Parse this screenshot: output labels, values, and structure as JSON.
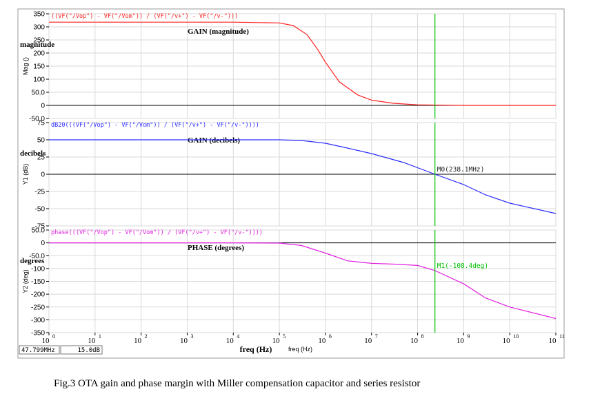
{
  "xaxis": {
    "label": "freq (Hz)",
    "label_small": "freq (Hz)",
    "ticks": [
      {
        "base": "10",
        "exp": "0"
      },
      {
        "base": "10",
        "exp": "1"
      },
      {
        "base": "10",
        "exp": "2"
      },
      {
        "base": "10",
        "exp": "3"
      },
      {
        "base": "10",
        "exp": "4"
      },
      {
        "base": "10",
        "exp": "5"
      },
      {
        "base": "10",
        "exp": "6"
      },
      {
        "base": "10",
        "exp": "7"
      },
      {
        "base": "10",
        "exp": "8"
      },
      {
        "base": "10",
        "exp": "9"
      },
      {
        "base": "10",
        "exp": "10"
      },
      {
        "base": "10",
        "exp": "11"
      }
    ]
  },
  "status": {
    "freq_readout": "47.799MHz",
    "value_readout": "15.0dB"
  },
  "caption": "Fig.3 OTA gain and phase margin with Miller compensation capacitor and series resistor",
  "colors": {
    "gain": "#ff2020",
    "db": "#2b2bff",
    "phase": "#e020e0",
    "cursor": "#00c000",
    "grid": "#d8d8d8"
  },
  "chart_data": [
    {
      "type": "line",
      "scale_x": "log",
      "expression": "((VF(\"/Vop\") - VF(\"/Vom\")) / (VF(\"/v+\") - VF(\"/v-\")))",
      "title": "GAIN (magnitude)",
      "side_label": "magnitude",
      "ylabel": "Mag ()",
      "ylim": [
        -50,
        350
      ],
      "yticks": [
        "350",
        "300",
        "250",
        "200",
        "150",
        "100",
        "50.0",
        "0",
        "-50.0"
      ],
      "x": [
        1,
        10,
        100,
        1000,
        10000,
        100000,
        200000,
        400000,
        700000,
        1000000,
        2000000,
        5000000,
        10000000,
        30000000,
        100000000,
        1000000000,
        10000000000,
        100000000000
      ],
      "y": [
        318,
        318,
        318,
        318,
        318,
        315,
        305,
        270,
        210,
        165,
        90,
        40,
        20,
        8,
        2,
        0,
        0,
        0
      ]
    },
    {
      "type": "line",
      "scale_x": "log",
      "expression": "dB20(((VF(\"/Vop\") - VF(\"/Vom\")) / (VF(\"/v+\") - VF(\"/v-\"))))",
      "title": "GAIN (decibels)",
      "side_label": "decibels",
      "ylabel": "Y1 (dB)",
      "ylim": [
        -75,
        75
      ],
      "yticks": [
        "75",
        "50",
        "25",
        "0",
        "-25",
        "-50",
        "-75"
      ],
      "x": [
        1,
        10,
        100,
        1000,
        10000,
        100000,
        300000,
        1000000,
        3000000,
        10000000,
        50000000,
        238100000,
        1000000000,
        3000000000,
        10000000000,
        100000000000
      ],
      "y": [
        50,
        50,
        50,
        50,
        50,
        50,
        49,
        45,
        38,
        30,
        17,
        0,
        -15,
        -30,
        -42,
        -57
      ],
      "annotations": [
        {
          "x": 238100000,
          "y": 0,
          "label": "M0(238.1MHz)"
        }
      ]
    },
    {
      "type": "line",
      "scale_x": "log",
      "expression": "phase(((VF(\"/Vop\") - VF(\"/Vom\")) / (VF(\"/v+\") - VF(\"/v-\"))))",
      "title": "PHASE (degrees)",
      "side_label": "degrees",
      "ylabel": "Y2 (deg)",
      "ylim": [
        -350,
        50
      ],
      "yticks": [
        "50.0",
        "0",
        "-50.0",
        "-100",
        "-150",
        "-200",
        "-250",
        "-300",
        "-350"
      ],
      "x": [
        1,
        10,
        100,
        1000,
        10000,
        100000,
        300000,
        1000000,
        3000000,
        10000000,
        30000000,
        100000000,
        238100000,
        1000000000,
        3000000000,
        10000000000,
        100000000000
      ],
      "y": [
        0,
        0,
        0,
        0,
        0,
        -1,
        -10,
        -40,
        -70,
        -80,
        -83,
        -88,
        -108,
        -160,
        -215,
        -250,
        -295
      ],
      "annotations": [
        {
          "x": 238100000,
          "y": -108.4,
          "label": "M1(-108.4deg)"
        }
      ]
    }
  ]
}
